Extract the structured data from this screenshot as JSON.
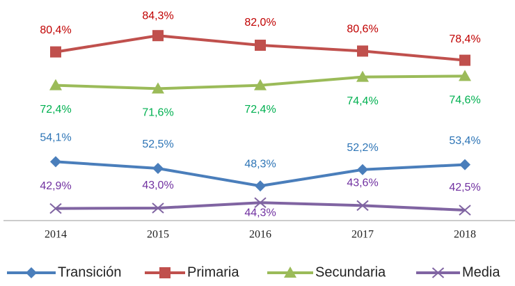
{
  "chart_data": {
    "type": "line",
    "categories": [
      "2014",
      "2015",
      "2016",
      "2017",
      "2018"
    ],
    "series": [
      {
        "name": "Transición",
        "color": "#4a7ebb",
        "label_color": "#2e75b6",
        "marker": "diamond",
        "values": [
          54.1,
          52.5,
          48.3,
          52.2,
          53.4
        ],
        "value_labels": [
          "54,1%",
          "52,5%",
          "48,3%",
          "52,2%",
          "53,4%"
        ]
      },
      {
        "name": "Primaria",
        "color": "#c0504d",
        "label_color": "#c00000",
        "marker": "square",
        "values": [
          80.4,
          84.3,
          82.0,
          80.6,
          78.4
        ],
        "value_labels": [
          "80,4%",
          "84,3%",
          "82,0%",
          "80,6%",
          "78,4%"
        ]
      },
      {
        "name": "Secundaria",
        "color": "#9bbb59",
        "label_color": "#00b050",
        "marker": "triangle",
        "values": [
          72.4,
          71.6,
          72.4,
          74.4,
          74.6
        ],
        "value_labels": [
          "72,4%",
          "71,6%",
          "72,4%",
          "74,4%",
          "74,6%"
        ]
      },
      {
        "name": "Media",
        "color": "#8064a2",
        "label_color": "#7030a0",
        "marker": "x",
        "values": [
          42.9,
          43.0,
          44.3,
          43.6,
          42.5
        ],
        "value_labels": [
          "42,9%",
          "43,0%",
          "44,3%",
          "43,6%",
          "42,5%"
        ]
      }
    ],
    "ylim": [
      40,
      90
    ],
    "legend": "bottom"
  }
}
